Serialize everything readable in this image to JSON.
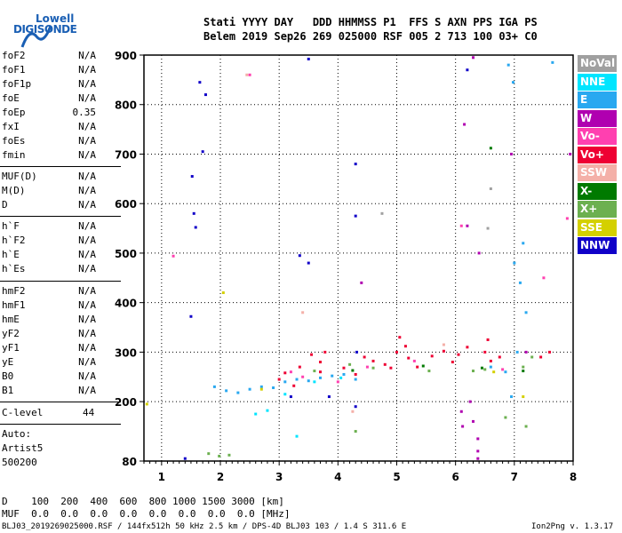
{
  "logo": {
    "line1": "Lowell",
    "line2": "DIGISONDE"
  },
  "header": {
    "line1": "Stati YYYY DAY   DDD HHMMSS P1  FFS S AXN PPS IGA PS",
    "line2": "Belem 2019 Sep26 269 025000 RSF 005 2 713 100 03+ C0"
  },
  "params": [
    {
      "name": "foF2",
      "value": "N/A"
    },
    {
      "name": "foF1",
      "value": "N/A"
    },
    {
      "name": "foF1p",
      "value": "N/A"
    },
    {
      "name": "foE",
      "value": "N/A"
    },
    {
      "name": "foEp",
      "value": "0.35"
    },
    {
      "name": "fxI",
      "value": "N/A"
    },
    {
      "name": "foEs",
      "value": "N/A"
    },
    {
      "name": "fmin",
      "value": "N/A"
    },
    {
      "name": "MUF(D)",
      "value": "N/A"
    },
    {
      "name": "M(D)",
      "value": "N/A"
    },
    {
      "name": "D",
      "value": "N/A"
    },
    {
      "name": "h`F",
      "value": "N/A"
    },
    {
      "name": "h`F2",
      "value": "N/A"
    },
    {
      "name": "h`E",
      "value": "N/A"
    },
    {
      "name": "h`Es",
      "value": "N/A"
    },
    {
      "name": "hmF2",
      "value": "N/A"
    },
    {
      "name": "hmF1",
      "value": "N/A"
    },
    {
      "name": "hmE",
      "value": "N/A"
    },
    {
      "name": "yF2",
      "value": "N/A"
    },
    {
      "name": "yF1",
      "value": "N/A"
    },
    {
      "name": "yE",
      "value": "N/A"
    },
    {
      "name": "B0",
      "value": "N/A"
    },
    {
      "name": "B1",
      "value": "N/A"
    }
  ],
  "clevel": {
    "label": "C-level",
    "value": "44"
  },
  "auto": {
    "line1": "Auto:",
    "line2": "Artist5",
    "line3": "500200"
  },
  "legend": [
    {
      "label": "NoVal",
      "color": "#a0a0a0"
    },
    {
      "label": "NNE",
      "color": "#00e5ff"
    },
    {
      "label": "E",
      "color": "#29a8f0"
    },
    {
      "label": "W",
      "color": "#b000b0"
    },
    {
      "label": "Vo-",
      "color": "#ff40b0"
    },
    {
      "label": "Vo+",
      "color": "#ee0033"
    },
    {
      "label": "SSW",
      "color": "#f4b0a8"
    },
    {
      "label": "X-",
      "color": "#007a00"
    },
    {
      "label": "X+",
      "color": "#6cb050"
    },
    {
      "label": "SSE",
      "color": "#d4d000"
    },
    {
      "label": "NNW",
      "color": "#1000c8"
    }
  ],
  "muf_table": {
    "d_row": "D    100  200  400  600  800 1000 1500 3000 [km]",
    "muf_row": "MUF  0.0  0.0  0.0  0.0  0.0  0.0  0.0  0.0 [MHz]"
  },
  "footer": {
    "left": "BLJ03_2019269025000.RSF / 144fx512h 50 kHz 2.5 km / DPS-4D BLJ03 103 / 1.4 S 311.6 E",
    "right": "Ion2Png v. 1.3.17"
  },
  "chart_data": {
    "type": "scatter",
    "xlim": [
      0.7,
      8.0
    ],
    "ylim": [
      80,
      900
    ],
    "xticks": [
      1,
      2,
      3,
      4,
      5,
      6,
      7,
      8
    ],
    "yticks": [
      80,
      200,
      300,
      400,
      500,
      600,
      700,
      800,
      900
    ],
    "grid": true,
    "series": [
      {
        "color": "#1000c8",
        "points": [
          [
            1.4,
            85
          ],
          [
            1.5,
            372
          ],
          [
            1.52,
            655
          ],
          [
            1.55,
            580
          ],
          [
            1.58,
            552
          ],
          [
            1.65,
            845
          ],
          [
            1.7,
            705
          ],
          [
            1.75,
            820
          ],
          [
            3.35,
            495
          ],
          [
            3.5,
            892
          ],
          [
            4.3,
            190
          ],
          [
            4.3,
            680
          ],
          [
            4.3,
            575
          ],
          [
            4.32,
            300
          ],
          [
            6.2,
            870
          ],
          [
            3.2,
            210
          ],
          [
            3.5,
            480
          ],
          [
            3.85,
            210
          ]
        ]
      },
      {
        "color": "#ee0033",
        "points": [
          [
            3.0,
            245
          ],
          [
            3.1,
            258
          ],
          [
            3.25,
            232
          ],
          [
            3.35,
            270
          ],
          [
            3.55,
            295
          ],
          [
            3.7,
            280
          ],
          [
            3.78,
            300
          ],
          [
            4.1,
            268
          ],
          [
            4.3,
            255
          ],
          [
            4.45,
            290
          ],
          [
            4.6,
            282
          ],
          [
            4.8,
            275
          ],
          [
            5.0,
            300
          ],
          [
            5.15,
            312
          ],
          [
            5.2,
            288
          ],
          [
            5.35,
            270
          ],
          [
            5.6,
            292
          ],
          [
            5.8,
            302
          ],
          [
            5.95,
            280
          ],
          [
            6.05,
            295
          ],
          [
            6.2,
            310
          ],
          [
            6.5,
            300
          ],
          [
            6.6,
            282
          ],
          [
            6.75,
            290
          ],
          [
            7.45,
            290
          ],
          [
            7.6,
            300
          ],
          [
            3.7,
            260
          ],
          [
            4.9,
            268
          ],
          [
            5.05,
            330
          ],
          [
            6.55,
            325
          ]
        ]
      },
      {
        "color": "#b000b0",
        "points": [
          [
            6.2,
            555
          ],
          [
            6.25,
            200
          ],
          [
            6.3,
            160
          ],
          [
            6.38,
            125
          ],
          [
            6.38,
            100
          ],
          [
            6.38,
            85
          ],
          [
            6.1,
            180
          ],
          [
            6.12,
            150
          ],
          [
            6.15,
            760
          ],
          [
            6.3,
            895
          ],
          [
            6.95,
            700
          ],
          [
            7.2,
            300
          ],
          [
            7.95,
            700
          ],
          [
            6.4,
            500
          ],
          [
            4.4,
            440
          ]
        ]
      },
      {
        "color": "#29a8f0",
        "points": [
          [
            1.9,
            230
          ],
          [
            2.1,
            222
          ],
          [
            2.3,
            218
          ],
          [
            2.5,
            225
          ],
          [
            2.7,
            230
          ],
          [
            2.9,
            228
          ],
          [
            3.1,
            240
          ],
          [
            3.3,
            245
          ],
          [
            3.5,
            242
          ],
          [
            3.7,
            248
          ],
          [
            3.9,
            252
          ],
          [
            4.1,
            255
          ],
          [
            4.3,
            245
          ],
          [
            6.6,
            270
          ],
          [
            6.85,
            260
          ],
          [
            6.95,
            210
          ],
          [
            6.9,
            880
          ],
          [
            7.0,
            480
          ],
          [
            7.1,
            440
          ],
          [
            7.2,
            380
          ],
          [
            7.15,
            520
          ],
          [
            7.65,
            885
          ],
          [
            7.05,
            300
          ],
          [
            6.98,
            845
          ]
        ]
      },
      {
        "color": "#ff40b0",
        "points": [
          [
            3.2,
            260
          ],
          [
            3.4,
            250
          ],
          [
            4.0,
            240
          ],
          [
            4.5,
            270
          ],
          [
            5.3,
            282
          ],
          [
            6.1,
            555
          ],
          [
            6.8,
            265
          ],
          [
            7.5,
            450
          ],
          [
            7.9,
            570
          ],
          [
            2.5,
            860
          ],
          [
            1.2,
            494
          ]
        ]
      },
      {
        "color": "#6cb050",
        "points": [
          [
            3.6,
            262
          ],
          [
            4.2,
            275
          ],
          [
            4.6,
            268
          ],
          [
            5.55,
            262
          ],
          [
            6.3,
            262
          ],
          [
            6.5,
            265
          ],
          [
            7.15,
            270
          ],
          [
            7.3,
            290
          ],
          [
            1.8,
            95
          ],
          [
            1.98,
            90
          ],
          [
            2.15,
            92
          ],
          [
            4.3,
            140
          ],
          [
            6.85,
            168
          ],
          [
            7.2,
            150
          ]
        ]
      },
      {
        "color": "#007a00",
        "points": [
          [
            4.25,
            263
          ],
          [
            5.45,
            272
          ],
          [
            6.45,
            268
          ],
          [
            6.6,
            712
          ],
          [
            7.15,
            262
          ]
        ]
      },
      {
        "color": "#00e5ff",
        "points": [
          [
            2.6,
            175
          ],
          [
            2.8,
            182
          ],
          [
            3.3,
            130
          ],
          [
            3.1,
            215
          ],
          [
            3.6,
            240
          ],
          [
            4.05,
            248
          ]
        ]
      },
      {
        "color": "#d4d000",
        "points": [
          [
            0.75,
            195
          ],
          [
            2.05,
            420
          ],
          [
            2.7,
            225
          ],
          [
            7.15,
            210
          ],
          [
            6.65,
            260
          ]
        ]
      },
      {
        "color": "#f4b0a8",
        "points": [
          [
            2.45,
            860
          ],
          [
            4.25,
            180
          ],
          [
            3.4,
            380
          ],
          [
            5.8,
            315
          ]
        ]
      },
      {
        "color": "#a0a0a0",
        "points": [
          [
            6.55,
            550
          ],
          [
            6.6,
            630
          ],
          [
            4.75,
            580
          ]
        ]
      }
    ]
  }
}
